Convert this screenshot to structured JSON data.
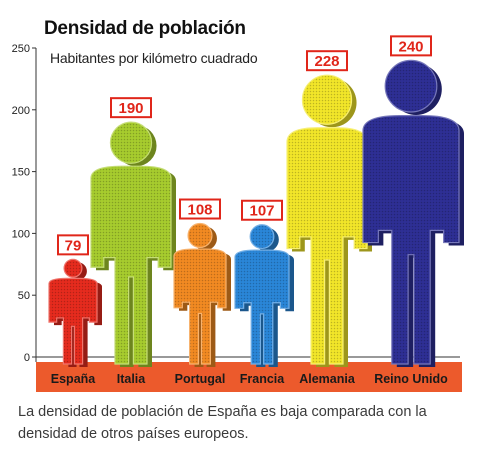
{
  "chart_data": {
    "type": "bar",
    "title": "Densidad de población",
    "subtitle": "Habitantes por kilómetro cuadrado",
    "categories": [
      "España",
      "Italia",
      "Portugal",
      "Francia",
      "Alemania",
      "Reino Unido"
    ],
    "values": [
      79,
      190,
      108,
      107,
      228,
      240
    ],
    "data_labels": [
      "79",
      "190",
      "108",
      "107",
      "228",
      "240"
    ],
    "colors": [
      "#e62b1e",
      "#a7cc2e",
      "#f28a22",
      "#2a86d8",
      "#f2e629",
      "#2e2f95"
    ],
    "ylim": [
      0,
      250
    ],
    "yticks": [
      "0",
      "50",
      "100",
      "150",
      "200",
      "250"
    ],
    "grid": false,
    "legend": "none",
    "category_band_color": "#ec5a2c",
    "label_box_color": "#e0261a"
  },
  "caption": "La densidad de población de España es baja comparada con la densidad de otros países europeos."
}
